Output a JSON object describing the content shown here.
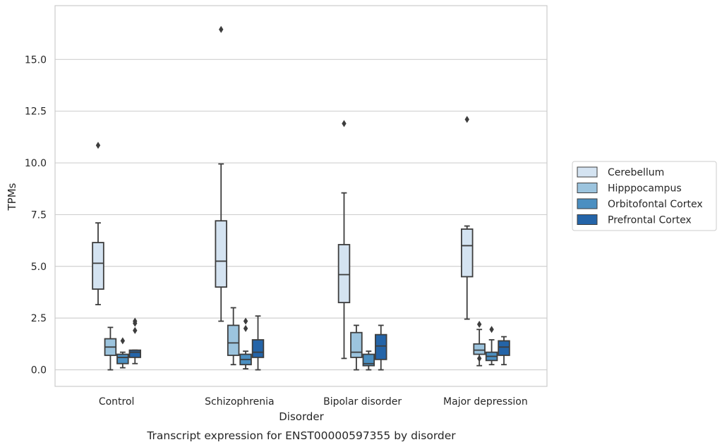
{
  "chart_data": {
    "type": "box",
    "caption": "Transcript expression for ENST00000597355 by disorder",
    "xlabel": "Disorder",
    "ylabel": "TPMs",
    "ylim": [
      -0.8,
      17.6
    ],
    "yticks": [
      0.0,
      2.5,
      5.0,
      7.5,
      10.0,
      12.5,
      15.0
    ],
    "ytick_labels": [
      "0.0",
      "2.5",
      "5.0",
      "7.5",
      "10.0",
      "12.5",
      "15.0"
    ],
    "grid": "horizontal",
    "legend_position": "right",
    "categories": [
      "Control",
      "Schizophrenia",
      "Bipolar disorder",
      "Major depression"
    ],
    "series": [
      {
        "name": "Cerebellum",
        "color": "#d4e3f1",
        "boxes": [
          {
            "whislo": 3.15,
            "q1": 3.9,
            "med": 5.15,
            "q3": 6.15,
            "whishi": 7.1,
            "fliers": [
              10.85
            ]
          },
          {
            "whislo": 2.35,
            "q1": 4.0,
            "med": 5.25,
            "q3": 7.2,
            "whishi": 9.95,
            "fliers": [
              16.45
            ]
          },
          {
            "whislo": 0.55,
            "q1": 3.25,
            "med": 4.6,
            "q3": 6.05,
            "whishi": 8.55,
            "fliers": [
              11.9
            ]
          },
          {
            "whislo": 2.45,
            "q1": 4.5,
            "med": 6.0,
            "q3": 6.8,
            "whishi": 6.95,
            "fliers": [
              12.1
            ]
          }
        ]
      },
      {
        "name": "Hipppocampus",
        "color": "#9cc4de",
        "boxes": [
          {
            "whislo": 0.0,
            "q1": 0.7,
            "med": 1.1,
            "q3": 1.5,
            "whishi": 2.05,
            "fliers": []
          },
          {
            "whislo": 0.25,
            "q1": 0.7,
            "med": 1.3,
            "q3": 2.15,
            "whishi": 3.0,
            "fliers": []
          },
          {
            "whislo": 0.0,
            "q1": 0.6,
            "med": 0.85,
            "q3": 1.8,
            "whishi": 2.15,
            "fliers": []
          },
          {
            "whislo": 0.2,
            "q1": 0.75,
            "med": 0.95,
            "q3": 1.25,
            "whishi": 1.95,
            "fliers": [
              0.55,
              2.2
            ]
          }
        ]
      },
      {
        "name": "Orbitofontal Cortex",
        "color": "#4b8fc1",
        "boxes": [
          {
            "whislo": 0.1,
            "q1": 0.3,
            "med": 0.6,
            "q3": 0.75,
            "whishi": 0.85,
            "fliers": [
              1.4
            ]
          },
          {
            "whislo": 0.05,
            "q1": 0.25,
            "med": 0.5,
            "q3": 0.75,
            "whishi": 0.9,
            "fliers": [
              2.0,
              2.35
            ]
          },
          {
            "whislo": 0.0,
            "q1": 0.2,
            "med": 0.3,
            "q3": 0.75,
            "whishi": 0.9,
            "fliers": []
          },
          {
            "whislo": 0.25,
            "q1": 0.45,
            "med": 0.65,
            "q3": 0.85,
            "whishi": 1.45,
            "fliers": [
              1.95
            ]
          }
        ]
      },
      {
        "name": "Prefrontal Cortex",
        "color": "#2464a8",
        "boxes": [
          {
            "whislo": 0.3,
            "q1": 0.6,
            "med": 0.85,
            "q3": 0.95,
            "whishi": 0.95,
            "fliers": [
              1.9,
              2.25,
              2.35
            ]
          },
          {
            "whislo": 0.0,
            "q1": 0.6,
            "med": 0.85,
            "q3": 1.45,
            "whishi": 2.6,
            "fliers": []
          },
          {
            "whislo": 0.0,
            "q1": 0.5,
            "med": 1.15,
            "q3": 1.7,
            "whishi": 2.15,
            "fliers": []
          },
          {
            "whislo": 0.25,
            "q1": 0.7,
            "med": 1.1,
            "q3": 1.4,
            "whishi": 1.6,
            "fliers": []
          }
        ]
      }
    ]
  }
}
